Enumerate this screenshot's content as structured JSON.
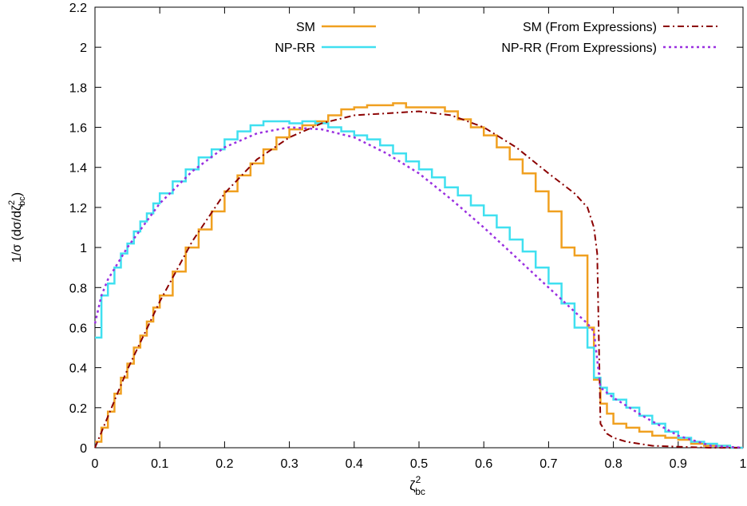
{
  "chart_data": {
    "type": "line",
    "title": "",
    "xlabel": "ζ",
    "xlabel_sup": "2",
    "xlabel_sub": "bc",
    "ylabel": "1/σ  (dσ/dζ",
    "ylabel_sup": "2",
    "ylabel_sub": "bc",
    "ylabel_close": ")",
    "xlim": [
      0,
      1
    ],
    "ylim": [
      0,
      2.2
    ],
    "x_ticks": [
      "0",
      "0.1",
      "0.2",
      "0.3",
      "0.4",
      "0.5",
      "0.6",
      "0.7",
      "0.8",
      "0.9",
      "1"
    ],
    "y_ticks": [
      "0",
      "0.2",
      "0.4",
      "0.6",
      "0.8",
      "1",
      "1.2",
      "1.4",
      "1.6",
      "1.8",
      "2",
      "2.2"
    ],
    "grid": false,
    "legend_position": "top",
    "series": [
      {
        "name": "SM",
        "color": "#f0a020",
        "style": "histogram-step",
        "x": [
          0.0,
          0.01,
          0.02,
          0.03,
          0.04,
          0.05,
          0.06,
          0.07,
          0.08,
          0.09,
          0.1,
          0.12,
          0.14,
          0.16,
          0.18,
          0.2,
          0.22,
          0.24,
          0.26,
          0.28,
          0.3,
          0.32,
          0.34,
          0.36,
          0.38,
          0.4,
          0.42,
          0.44,
          0.46,
          0.48,
          0.5,
          0.52,
          0.54,
          0.56,
          0.58,
          0.6,
          0.62,
          0.64,
          0.66,
          0.68,
          0.7,
          0.72,
          0.74,
          0.76,
          0.77,
          0.78,
          0.79,
          0.8,
          0.82,
          0.84,
          0.86,
          0.88,
          0.9,
          0.92,
          0.94,
          0.96,
          0.98,
          1.0
        ],
        "y": [
          0.03,
          0.1,
          0.18,
          0.27,
          0.35,
          0.42,
          0.5,
          0.56,
          0.63,
          0.7,
          0.76,
          0.88,
          1.0,
          1.09,
          1.18,
          1.28,
          1.36,
          1.42,
          1.49,
          1.55,
          1.59,
          1.61,
          1.63,
          1.66,
          1.69,
          1.7,
          1.71,
          1.71,
          1.72,
          1.7,
          1.7,
          1.7,
          1.68,
          1.64,
          1.6,
          1.56,
          1.5,
          1.44,
          1.37,
          1.28,
          1.18,
          1.0,
          0.96,
          0.6,
          0.34,
          0.22,
          0.17,
          0.12,
          0.1,
          0.08,
          0.06,
          0.05,
          0.04,
          0.02,
          0.01,
          0.01,
          0.0,
          0.0
        ]
      },
      {
        "name": "NP-RR",
        "color": "#40e0f0",
        "style": "histogram-step",
        "x": [
          0.0,
          0.01,
          0.02,
          0.03,
          0.04,
          0.05,
          0.06,
          0.07,
          0.08,
          0.09,
          0.1,
          0.12,
          0.14,
          0.16,
          0.18,
          0.2,
          0.22,
          0.24,
          0.26,
          0.28,
          0.3,
          0.32,
          0.34,
          0.36,
          0.38,
          0.4,
          0.42,
          0.44,
          0.46,
          0.48,
          0.5,
          0.52,
          0.54,
          0.56,
          0.58,
          0.6,
          0.62,
          0.64,
          0.66,
          0.68,
          0.7,
          0.72,
          0.74,
          0.76,
          0.77,
          0.78,
          0.79,
          0.8,
          0.82,
          0.84,
          0.86,
          0.88,
          0.9,
          0.92,
          0.94,
          0.96,
          0.98,
          1.0
        ],
        "y": [
          0.55,
          0.76,
          0.82,
          0.9,
          0.97,
          1.02,
          1.08,
          1.13,
          1.17,
          1.22,
          1.27,
          1.33,
          1.39,
          1.45,
          1.49,
          1.54,
          1.58,
          1.61,
          1.63,
          1.63,
          1.62,
          1.63,
          1.62,
          1.6,
          1.58,
          1.56,
          1.54,
          1.51,
          1.47,
          1.43,
          1.39,
          1.35,
          1.3,
          1.26,
          1.21,
          1.16,
          1.1,
          1.04,
          0.98,
          0.9,
          0.82,
          0.72,
          0.6,
          0.5,
          0.35,
          0.3,
          0.27,
          0.24,
          0.2,
          0.16,
          0.12,
          0.08,
          0.05,
          0.03,
          0.02,
          0.01,
          0.0,
          0.0
        ]
      },
      {
        "name": "SM (From Expressions)",
        "color": "#8b0000",
        "style": "dash-dot",
        "x": [
          0.0,
          0.05,
          0.1,
          0.15,
          0.2,
          0.25,
          0.3,
          0.35,
          0.4,
          0.45,
          0.5,
          0.55,
          0.6,
          0.65,
          0.7,
          0.74,
          0.76,
          0.77,
          0.775,
          0.78,
          0.79,
          0.8,
          0.82,
          0.84,
          0.86,
          0.9,
          0.95,
          1.0
        ],
        "y": [
          0.0,
          0.39,
          0.73,
          1.03,
          1.27,
          1.44,
          1.55,
          1.62,
          1.66,
          1.67,
          1.68,
          1.66,
          1.6,
          1.5,
          1.37,
          1.27,
          1.2,
          1.1,
          0.97,
          0.12,
          0.07,
          0.05,
          0.03,
          0.02,
          0.01,
          0.005,
          0.0,
          0.0
        ]
      },
      {
        "name": "NP-RR (From Expressions)",
        "color": "#9a30e0",
        "style": "dotted",
        "x": [
          0.0,
          0.01,
          0.02,
          0.05,
          0.1,
          0.15,
          0.2,
          0.25,
          0.3,
          0.35,
          0.4,
          0.45,
          0.5,
          0.55,
          0.6,
          0.65,
          0.7,
          0.74,
          0.76,
          0.77,
          0.78,
          0.8,
          0.85,
          0.9,
          0.95,
          1.0
        ],
        "y": [
          0.62,
          0.76,
          0.84,
          1.0,
          1.22,
          1.38,
          1.5,
          1.57,
          1.6,
          1.59,
          1.55,
          1.47,
          1.37,
          1.24,
          1.1,
          0.95,
          0.8,
          0.68,
          0.62,
          0.58,
          0.3,
          0.25,
          0.15,
          0.06,
          0.01,
          0.0
        ]
      }
    ]
  }
}
